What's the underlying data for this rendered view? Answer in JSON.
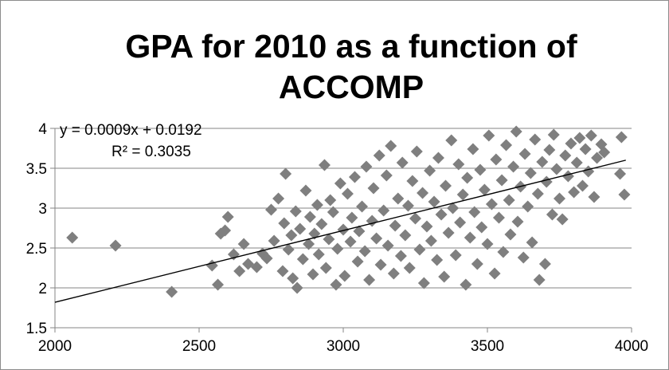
{
  "chart_data": {
    "type": "scatter",
    "title": [
      "GPA for 2010 as a function of",
      "ACCOMP"
    ],
    "xlabel": "",
    "ylabel": "",
    "xlim": [
      2000,
      4000
    ],
    "ylim": [
      1.5,
      4
    ],
    "x_ticks": [
      "2000",
      "2500",
      "3000",
      "3500",
      "4000"
    ],
    "y_ticks": [
      "1.5",
      "2",
      "2.5",
      "3",
      "3.5",
      "4"
    ],
    "grid": "horizontal",
    "legend": "none",
    "marker_color": "#7f7f7f",
    "trendline": {
      "slope": 0.0009,
      "intercept": 0.0192,
      "x_range": [
        2000,
        3980
      ],
      "equation": "y = 0.0009x + 0.0192",
      "r_squared": "R² = 0.3035"
    },
    "points": [
      [
        2060,
        2.63
      ],
      [
        2210,
        2.53
      ],
      [
        2405,
        1.95
      ],
      [
        2545,
        2.28
      ],
      [
        2565,
        2.04
      ],
      [
        2575,
        2.68
      ],
      [
        2590,
        2.72
      ],
      [
        2600,
        2.89
      ],
      [
        2620,
        2.42
      ],
      [
        2640,
        2.21
      ],
      [
        2655,
        2.55
      ],
      [
        2670,
        2.3
      ],
      [
        2700,
        2.26
      ],
      [
        2720,
        2.43
      ],
      [
        2735,
        2.37
      ],
      [
        2750,
        2.98
      ],
      [
        2760,
        2.59
      ],
      [
        2775,
        3.12
      ],
      [
        2790,
        2.21
      ],
      [
        2795,
        2.81
      ],
      [
        2800,
        3.43
      ],
      [
        2810,
        2.48
      ],
      [
        2820,
        2.66
      ],
      [
        2825,
        2.12
      ],
      [
        2835,
        2.96
      ],
      [
        2840,
        2.0
      ],
      [
        2850,
        2.74
      ],
      [
        2860,
        2.36
      ],
      [
        2870,
        3.22
      ],
      [
        2880,
        2.55
      ],
      [
        2885,
        2.89
      ],
      [
        2895,
        2.17
      ],
      [
        2900,
        2.68
      ],
      [
        2910,
        3.04
      ],
      [
        2915,
        2.42
      ],
      [
        2925,
        2.8
      ],
      [
        2935,
        3.54
      ],
      [
        2940,
        2.25
      ],
      [
        2950,
        2.61
      ],
      [
        2955,
        3.1
      ],
      [
        2965,
        2.95
      ],
      [
        2975,
        2.04
      ],
      [
        2980,
        2.49
      ],
      [
        2990,
        3.31
      ],
      [
        3000,
        2.73
      ],
      [
        3005,
        2.15
      ],
      [
        3015,
        3.18
      ],
      [
        3025,
        2.58
      ],
      [
        3030,
        2.88
      ],
      [
        3040,
        3.39
      ],
      [
        3050,
        2.33
      ],
      [
        3055,
        2.71
      ],
      [
        3065,
        3.02
      ],
      [
        3075,
        2.46
      ],
      [
        3080,
        3.52
      ],
      [
        3090,
        2.1
      ],
      [
        3100,
        2.84
      ],
      [
        3105,
        3.25
      ],
      [
        3115,
        2.62
      ],
      [
        3125,
        3.66
      ],
      [
        3130,
        2.29
      ],
      [
        3140,
        2.97
      ],
      [
        3150,
        3.41
      ],
      [
        3155,
        2.53
      ],
      [
        3165,
        3.78
      ],
      [
        3175,
        2.18
      ],
      [
        3180,
        2.78
      ],
      [
        3190,
        3.12
      ],
      [
        3200,
        2.4
      ],
      [
        3205,
        3.57
      ],
      [
        3215,
        2.66
      ],
      [
        3225,
        3.03
      ],
      [
        3230,
        2.25
      ],
      [
        3240,
        3.34
      ],
      [
        3250,
        2.87
      ],
      [
        3255,
        3.71
      ],
      [
        3265,
        2.48
      ],
      [
        3275,
        3.19
      ],
      [
        3280,
        2.06
      ],
      [
        3290,
        2.77
      ],
      [
        3300,
        3.47
      ],
      [
        3305,
        2.59
      ],
      [
        3315,
        3.08
      ],
      [
        3325,
        2.35
      ],
      [
        3330,
        3.63
      ],
      [
        3340,
        2.92
      ],
      [
        3350,
        2.14
      ],
      [
        3355,
        3.28
      ],
      [
        3365,
        2.69
      ],
      [
        3375,
        3.85
      ],
      [
        3380,
        3.0
      ],
      [
        3390,
        2.41
      ],
      [
        3400,
        3.55
      ],
      [
        3405,
        2.82
      ],
      [
        3415,
        3.17
      ],
      [
        3425,
        2.04
      ],
      [
        3430,
        3.38
      ],
      [
        3440,
        2.63
      ],
      [
        3450,
        3.74
      ],
      [
        3455,
        2.95
      ],
      [
        3465,
        2.3
      ],
      [
        3475,
        3.48
      ],
      [
        3480,
        2.76
      ],
      [
        3490,
        3.23
      ],
      [
        3500,
        2.55
      ],
      [
        3505,
        3.91
      ],
      [
        3515,
        3.05
      ],
      [
        3525,
        2.18
      ],
      [
        3530,
        3.61
      ],
      [
        3540,
        2.88
      ],
      [
        3550,
        3.35
      ],
      [
        3555,
        2.45
      ],
      [
        3565,
        3.79
      ],
      [
        3575,
        3.1
      ],
      [
        3580,
        2.67
      ],
      [
        3590,
        3.52
      ],
      [
        3600,
        3.96
      ],
      [
        3605,
        2.83
      ],
      [
        3615,
        3.27
      ],
      [
        3625,
        2.38
      ],
      [
        3630,
        3.68
      ],
      [
        3640,
        3.02
      ],
      [
        3650,
        3.44
      ],
      [
        3655,
        2.57
      ],
      [
        3665,
        3.86
      ],
      [
        3675,
        3.18
      ],
      [
        3680,
        2.1
      ],
      [
        3690,
        3.58
      ],
      [
        3700,
        2.3
      ],
      [
        3705,
        3.33
      ],
      [
        3715,
        3.73
      ],
      [
        3725,
        2.92
      ],
      [
        3730,
        3.92
      ],
      [
        3740,
        3.49
      ],
      [
        3750,
        3.12
      ],
      [
        3760,
        2.86
      ],
      [
        3770,
        3.66
      ],
      [
        3780,
        3.4
      ],
      [
        3790,
        3.81
      ],
      [
        3800,
        3.2
      ],
      [
        3810,
        3.57
      ],
      [
        3820,
        3.88
      ],
      [
        3830,
        3.28
      ],
      [
        3840,
        3.74
      ],
      [
        3850,
        3.46
      ],
      [
        3860,
        3.91
      ],
      [
        3870,
        3.14
      ],
      [
        3880,
        3.63
      ],
      [
        3895,
        3.8
      ],
      [
        3905,
        3.7
      ],
      [
        3960,
        3.43
      ],
      [
        3965,
        3.89
      ],
      [
        3975,
        3.17
      ]
    ]
  }
}
